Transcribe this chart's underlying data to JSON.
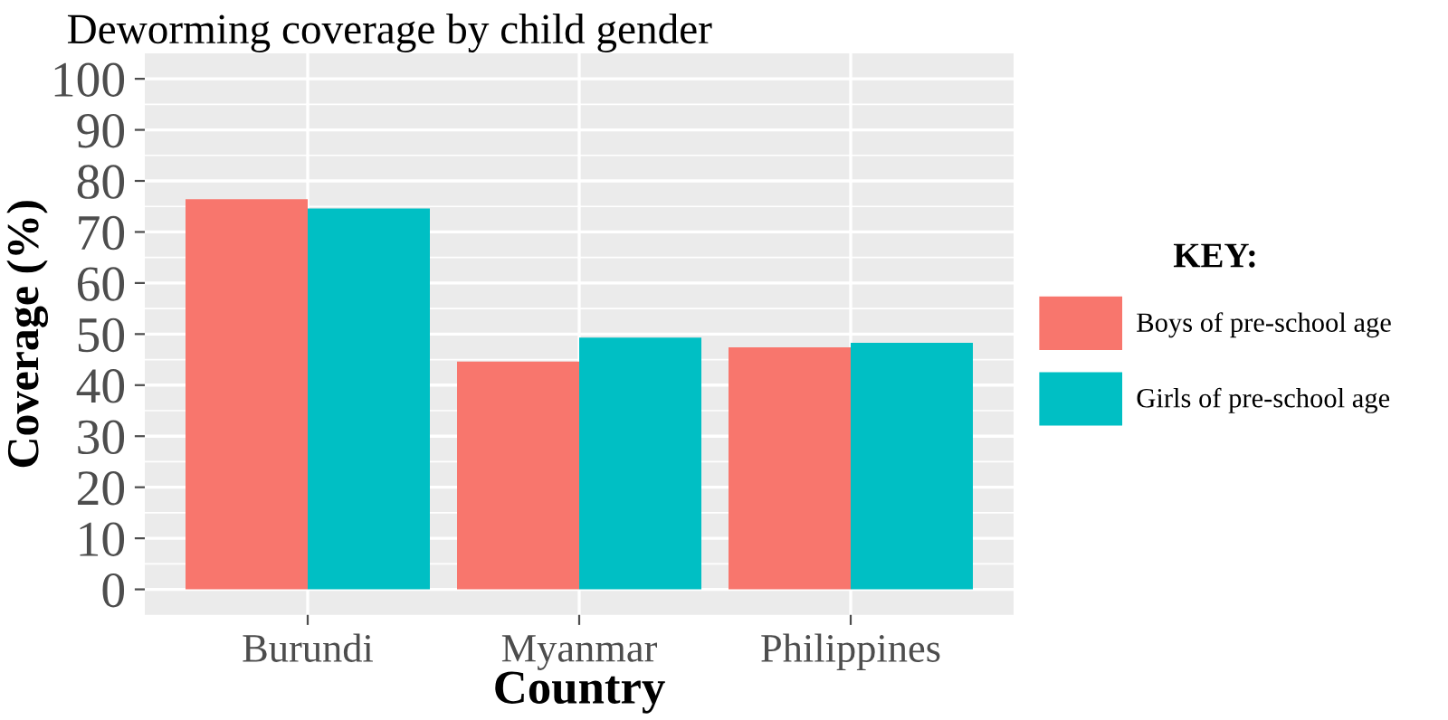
{
  "chart_data": {
    "type": "bar",
    "title": "Deworming coverage by child gender",
    "xlabel": "Country",
    "ylabel": "Coverage (%)",
    "legend_title": "KEY:",
    "categories": [
      "Burundi",
      "Myanmar",
      "Philippines"
    ],
    "series": [
      {
        "name": "Boys of pre-school age",
        "color": "#f8766d",
        "values": [
          76.4,
          44.6,
          47.4
        ]
      },
      {
        "name": "Girls of pre-school age",
        "color": "#00bfc4",
        "values": [
          74.6,
          49.3,
          48.3
        ]
      }
    ],
    "ylim": [
      -5,
      105
    ],
    "yticks": [
      0,
      10,
      20,
      30,
      40,
      50,
      60,
      70,
      80,
      90,
      100
    ],
    "grid": true,
    "legend": "right"
  }
}
